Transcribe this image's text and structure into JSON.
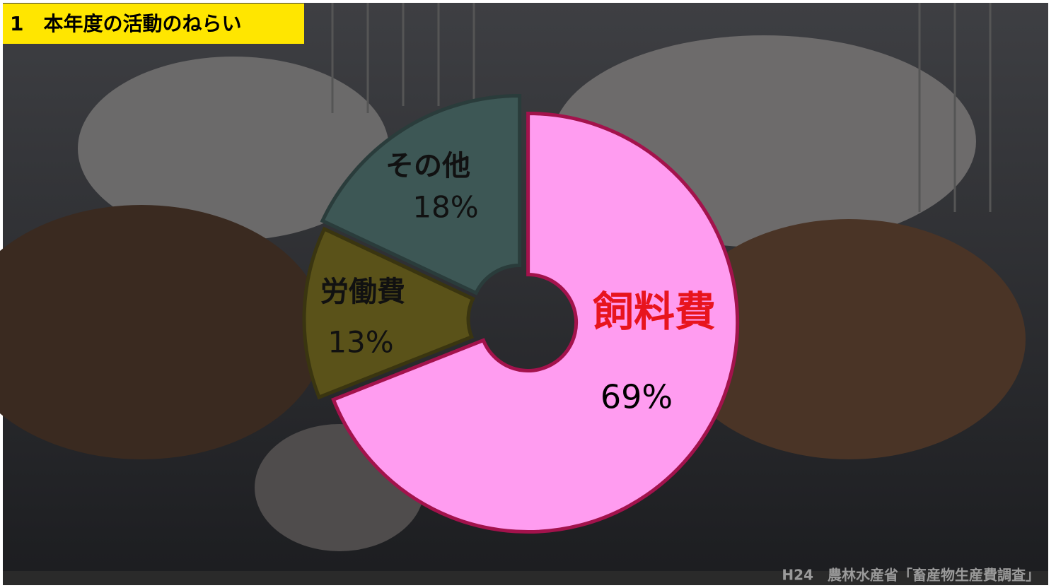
{
  "chart_data": {
    "type": "pie",
    "title": "1　本年度の活動のねらい",
    "source": "H24　農林水産省「畜産物生産費調査」",
    "categories": [
      "飼料費",
      "労働費",
      "その他"
    ],
    "values": [
      69,
      13,
      18
    ],
    "value_labels": [
      "69%",
      "13%",
      "18%"
    ],
    "colors": [
      "#ff9cf0",
      "#5a5219",
      "#3d5755"
    ],
    "donut": true
  }
}
